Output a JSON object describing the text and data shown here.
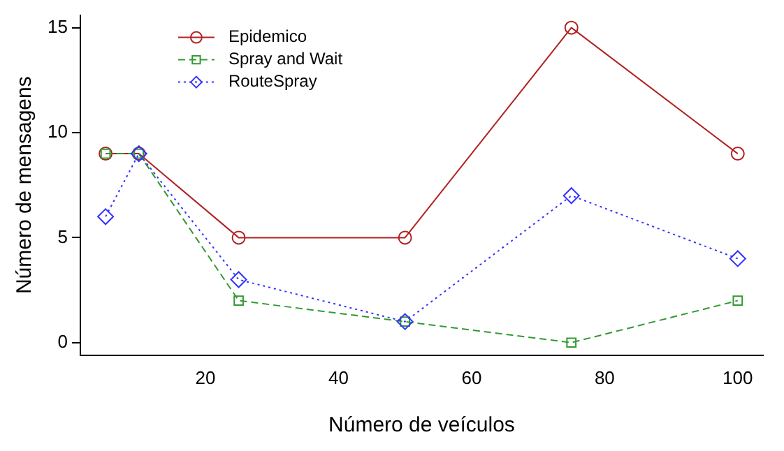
{
  "chart_data": {
    "type": "line",
    "xlabel": "Número de veículos",
    "ylabel": "Número de mensagens",
    "x": [
      5,
      10,
      25,
      50,
      75,
      100
    ],
    "xlim": [
      1.2,
      103.8
    ],
    "xticks": [
      20,
      40,
      60,
      80,
      100
    ],
    "ylim": [
      -0.6,
      15.6
    ],
    "yticks": [
      0,
      5,
      10,
      15
    ],
    "grid": false,
    "legend": "top left",
    "series": [
      {
        "name": "Epidemico",
        "color": "#b22222",
        "marker": "circle",
        "line_style": "solid",
        "values": [
          9,
          9,
          5,
          5,
          15,
          9
        ]
      },
      {
        "name": "Spray and Wait",
        "color": "#339933",
        "marker": "square",
        "line_style": "dashed",
        "values": [
          9,
          9,
          2,
          1,
          0,
          2
        ]
      },
      {
        "name": "RouteSpray",
        "color": "#3333ff",
        "marker": "diamond",
        "line_style": "dotted",
        "values": [
          6,
          9,
          3,
          1,
          7,
          4
        ]
      }
    ]
  }
}
